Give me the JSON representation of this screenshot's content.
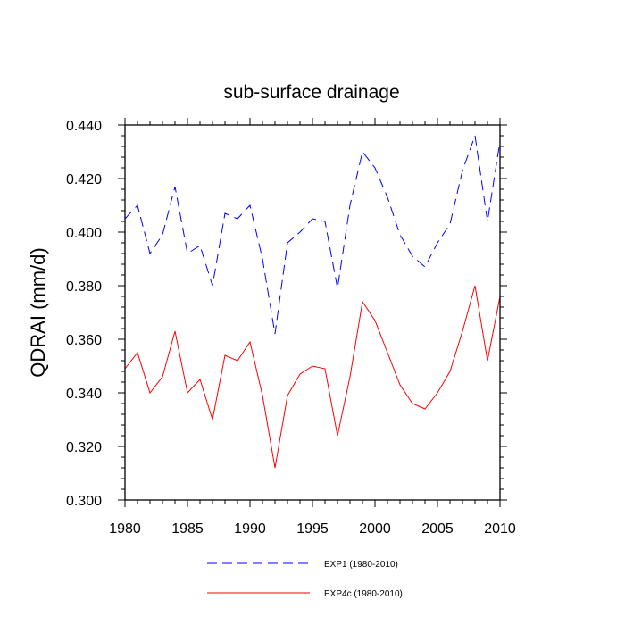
{
  "chart_data": {
    "type": "line",
    "title": "sub-surface drainage",
    "xlabel": "",
    "ylabel": "QDRAI  (mm/d)",
    "xlim": [
      1980,
      2010
    ],
    "ylim": [
      0.3,
      0.44
    ],
    "xticks": [
      "1980",
      "1985",
      "1990",
      "1995",
      "2000",
      "2005",
      "2010"
    ],
    "yticks": [
      "0.300",
      "0.320",
      "0.340",
      "0.360",
      "0.380",
      "0.400",
      "0.420",
      "0.440"
    ],
    "x": [
      1980,
      1981,
      1982,
      1983,
      1984,
      1985,
      1986,
      1987,
      1988,
      1989,
      1990,
      1991,
      1992,
      1993,
      1994,
      1995,
      1996,
      1997,
      1998,
      1999,
      2000,
      2001,
      2002,
      2003,
      2004,
      2005,
      2006,
      2007,
      2008,
      2009,
      2010
    ],
    "series": [
      {
        "name": "EXP1 (1980-2010)",
        "color": "#0000ff",
        "style": "dashed",
        "values": [
          0.405,
          0.41,
          0.392,
          0.399,
          0.417,
          0.392,
          0.395,
          0.38,
          0.407,
          0.405,
          0.41,
          0.39,
          0.362,
          0.396,
          0.4,
          0.405,
          0.404,
          0.379,
          0.41,
          0.43,
          0.424,
          0.413,
          0.399,
          0.391,
          0.387,
          0.396,
          0.403,
          0.423,
          0.436,
          0.404,
          0.434
        ]
      },
      {
        "name": "EXP4c (1980-2010)",
        "color": "#ff0000",
        "style": "solid",
        "values": [
          0.349,
          0.355,
          0.34,
          0.346,
          0.363,
          0.34,
          0.345,
          0.33,
          0.354,
          0.352,
          0.359,
          0.339,
          0.312,
          0.339,
          0.347,
          0.35,
          0.349,
          0.324,
          0.346,
          0.374,
          0.367,
          0.355,
          0.343,
          0.336,
          0.334,
          0.34,
          0.348,
          0.363,
          0.38,
          0.352,
          0.376
        ]
      }
    ],
    "legend_position": "bottom-center"
  }
}
